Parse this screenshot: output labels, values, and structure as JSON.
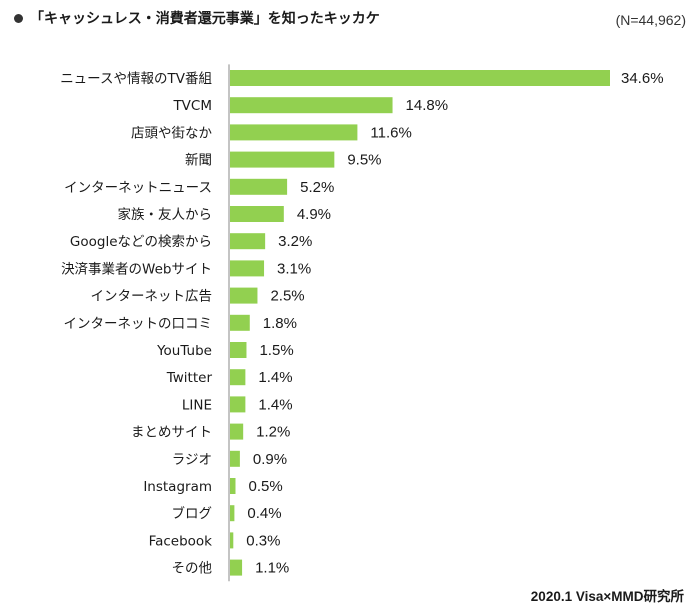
{
  "title": "「キャッシュレス・消費者還元事業」を知ったキッカケ",
  "sample_size": "(N=44,962)",
  "source": "2020.1 Visa×MMD研究所",
  "colors": {
    "bar": "#92d050",
    "axis": "#888888"
  },
  "chart_data": {
    "type": "bar",
    "orientation": "horizontal",
    "title": "「キャッシュレス・消費者還元事業」を知ったキッカケ",
    "xlabel": "",
    "ylabel": "",
    "xlim": [
      0,
      34.6
    ],
    "grid": false,
    "unit": "%",
    "categories": [
      "ニュースや情報のTV番組",
      "TVCM",
      "店頭や街なか",
      "新聞",
      "インターネットニュース",
      "家族・友人から",
      "Googleなどの検索から",
      "決済事業者のWebサイト",
      "インターネット広告",
      "インターネットの口コミ",
      "YouTube",
      "Twitter",
      "LINE",
      "まとめサイト",
      "ラジオ",
      "Instagram",
      "ブログ",
      "Facebook",
      "その他"
    ],
    "values": [
      34.6,
      14.8,
      11.6,
      9.5,
      5.2,
      4.9,
      3.2,
      3.1,
      2.5,
      1.8,
      1.5,
      1.4,
      1.4,
      1.2,
      0.9,
      0.5,
      0.4,
      0.3,
      1.1
    ],
    "value_labels": [
      "34.6%",
      "14.8%",
      "11.6%",
      "9.5%",
      "5.2%",
      "4.9%",
      "3.2%",
      "3.1%",
      "2.5%",
      "1.8%",
      "1.5%",
      "1.4%",
      "1.4%",
      "1.2%",
      "0.9%",
      "0.5%",
      "0.4%",
      "0.3%",
      "1.1%"
    ]
  }
}
